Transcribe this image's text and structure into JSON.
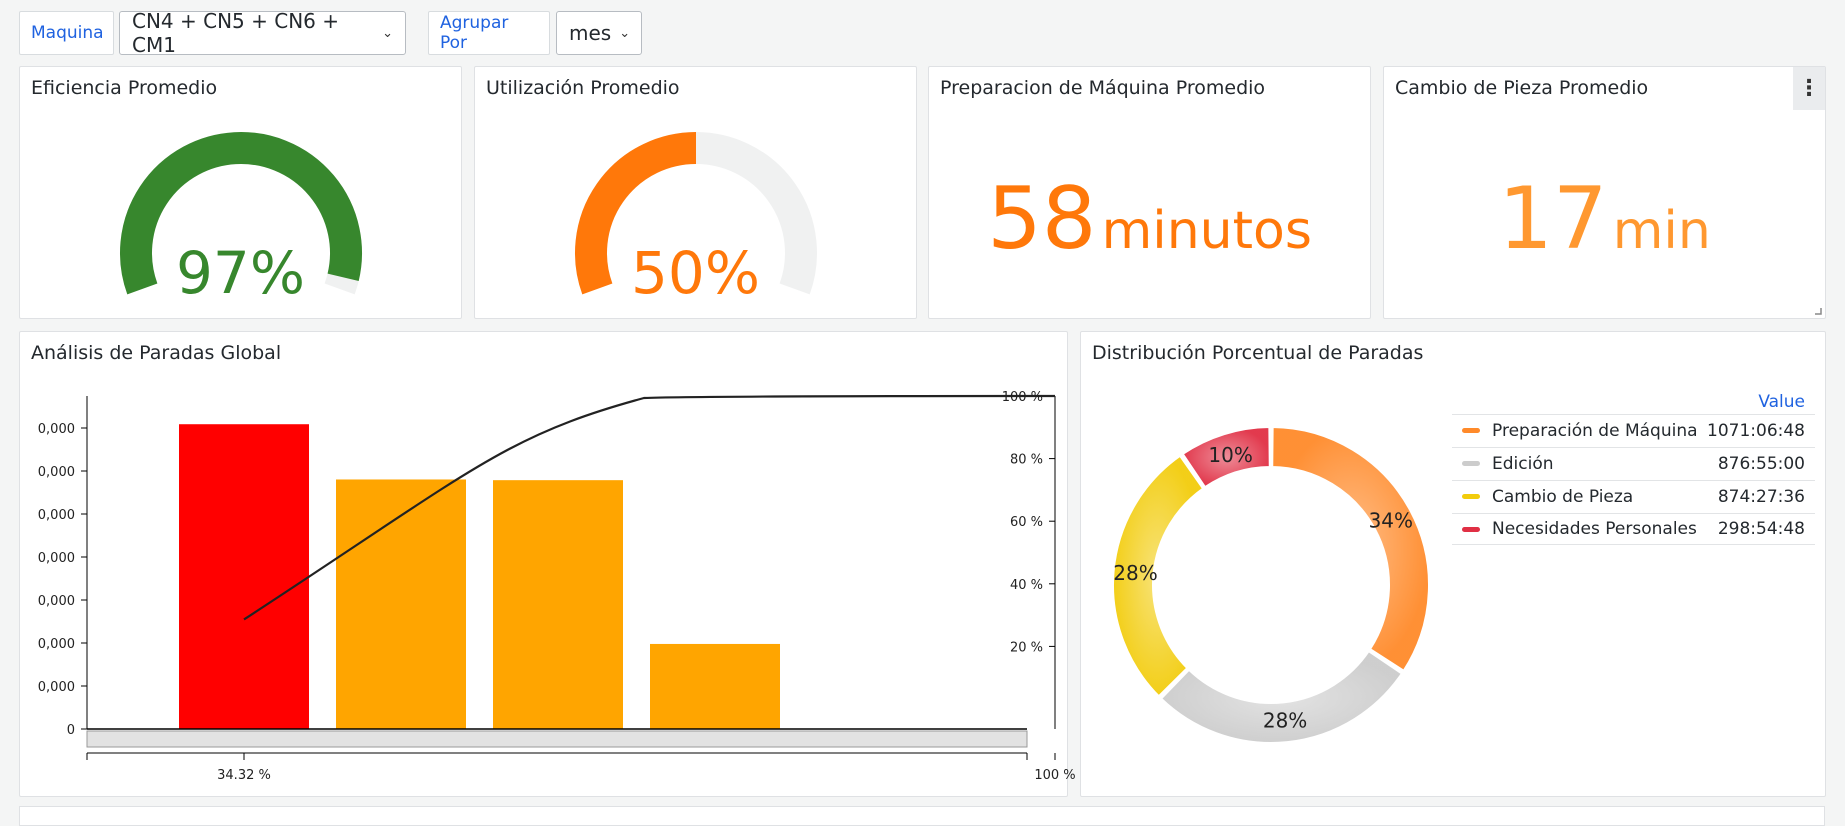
{
  "toolbar": {
    "maquina_label": "Maquina",
    "maquina_value": "CN4 + CN5 + CN6 + CM1",
    "agrupar_label": "Agrupar Por",
    "agrupar_value": "mes"
  },
  "panels": {
    "eficiencia": {
      "title": "Eficiencia Promedio",
      "value": "97%",
      "fraction": 0.97,
      "color": "#37872d"
    },
    "utilizacion": {
      "title": "Utilización Promedio",
      "value": "50%",
      "fraction": 0.5,
      "color": "#ff780a"
    },
    "preparacion": {
      "title": "Preparacion de Máquina Promedio",
      "number": "58",
      "unit": "minutos",
      "color": "#ff780a"
    },
    "cambio": {
      "title": "Cambio de Pieza Promedio",
      "number": "17",
      "unit": "min",
      "color": "#ff9830"
    },
    "pareto": {
      "title": "Análisis de Paradas Global"
    },
    "donut": {
      "title": "Distribución Porcentual de Paradas"
    }
  },
  "chart_data": [
    {
      "type": "bar",
      "title": "Análisis de Paradas Global",
      "values": [
        1071.11,
        876.92,
        874.46,
        298.91
      ],
      "colors": [
        "#ff0000",
        "#ffa500",
        "#ffa500",
        "#ffa500"
      ],
      "cumulative_percent": [
        34.32,
        62.4,
        90.42,
        100
      ],
      "left_ticks": [
        "0",
        "0,000",
        "0,000",
        "0,000",
        "0,000",
        "0,000",
        "0,000",
        "0,000"
      ],
      "right_ticks": [
        "20 %",
        "40 %",
        "60 %",
        "80 %",
        "100 %"
      ],
      "x_ticks": [
        "34.32 %",
        "100 %"
      ],
      "ylim": [
        0,
        1100
      ]
    },
    {
      "type": "pie",
      "title": "Distribución Porcentual de Paradas",
      "legend_header": "Value",
      "slices": [
        {
          "label": "Preparación de Máquina",
          "value": "1071:06:48",
          "percent": 34.3,
          "percent_label": "34%",
          "color": "#ff8a2a"
        },
        {
          "label": "Edición",
          "value": "876:55:00",
          "percent": 28.1,
          "percent_label": "28%",
          "color": "#cccccc"
        },
        {
          "label": "Cambio de Pieza",
          "value": "874:27:36",
          "percent": 28.0,
          "percent_label": "28%",
          "color": "#f2cc0c"
        },
        {
          "label": "Necesidades Personales",
          "value": "298:54:48",
          "percent": 9.6,
          "percent_label": "10%",
          "color": "#e02f44"
        }
      ]
    }
  ]
}
